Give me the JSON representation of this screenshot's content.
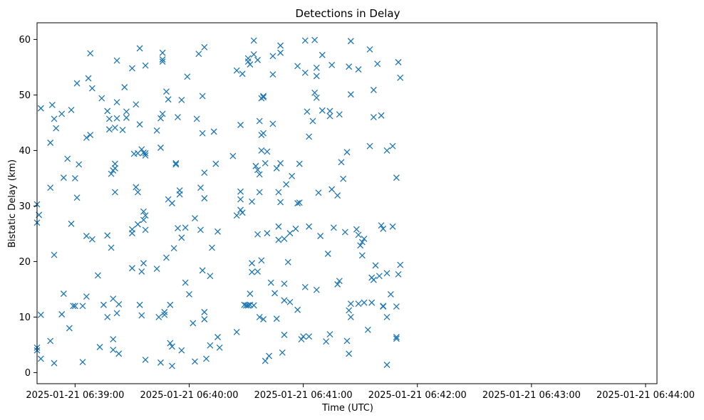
{
  "chart_data": {
    "type": "scatter",
    "title": "Detections in Delay",
    "xlabel": "Time (UTC)",
    "ylabel": "Bistatic Delay (km)",
    "x_tick_labels": [
      "2025-01-21 06:39:00",
      "2025-01-21 06:40:00",
      "2025-01-21 06:41:00",
      "2025-01-21 06:42:00",
      "2025-01-21 06:43:00",
      "2025-01-21 06:44:00"
    ],
    "x_ticks": [
      "06:39:00",
      "06:40:00",
      "06:41:00",
      "06:42:00",
      "06:43:00",
      "06:44:00"
    ],
    "xlim": [
      "06:38:40",
      "06:44:06"
    ],
    "y_ticks": [
      0,
      10,
      20,
      30,
      40,
      50,
      60
    ],
    "ylim": [
      -2,
      63
    ],
    "grid": false,
    "marker": "x",
    "color": "#1f77b4",
    "points": [
      [
        "06:38:40",
        27.0
      ],
      [
        "06:38:40",
        30.3
      ],
      [
        "06:38:41",
        28.4
      ],
      [
        "06:38:40",
        4.5
      ],
      [
        "06:38:40",
        4.0
      ],
      [
        "06:38:42",
        10.4
      ],
      [
        "06:38:42",
        2.5
      ],
      [
        "06:38:42",
        47.6
      ],
      [
        "06:38:47",
        41.4
      ],
      [
        "06:38:47",
        33.3
      ],
      [
        "06:38:47",
        5.7
      ],
      [
        "06:38:48",
        48.2
      ],
      [
        "06:38:49",
        45.7
      ],
      [
        "06:38:49",
        21.2
      ],
      [
        "06:38:49",
        1.7
      ],
      [
        "06:38:50",
        44.0
      ],
      [
        "06:38:53",
        46.6
      ],
      [
        "06:38:53",
        10.5
      ],
      [
        "06:38:54",
        14.2
      ],
      [
        "06:38:54",
        35.1
      ],
      [
        "06:38:56",
        38.5
      ],
      [
        "06:38:57",
        8.0
      ],
      [
        "06:38:58",
        26.8
      ],
      [
        "06:38:58",
        47.3
      ],
      [
        "06:38:59",
        12.0
      ],
      [
        "06:39:00",
        12.0
      ],
      [
        "06:39:00",
        35.0
      ],
      [
        "06:39:01",
        31.5
      ],
      [
        "06:39:01",
        52.1
      ],
      [
        "06:39:02",
        37.5
      ],
      [
        "06:39:04",
        1.9
      ],
      [
        "06:39:04",
        12.0
      ],
      [
        "06:39:06",
        24.6
      ],
      [
        "06:39:06",
        42.3
      ],
      [
        "06:39:06",
        13.7
      ],
      [
        "06:39:07",
        53.0
      ],
      [
        "06:39:08",
        42.8
      ],
      [
        "06:39:08",
        57.5
      ],
      [
        "06:39:09",
        24.0
      ],
      [
        "06:39:09",
        51.2
      ],
      [
        "06:39:12",
        17.5
      ],
      [
        "06:39:13",
        4.6
      ],
      [
        "06:39:14",
        49.4
      ],
      [
        "06:39:15",
        12.2
      ],
      [
        "06:39:17",
        10.0
      ],
      [
        "06:39:17",
        24.7
      ],
      [
        "06:39:17",
        47.1
      ],
      [
        "06:39:18",
        45.7
      ],
      [
        "06:39:18",
        43.8
      ],
      [
        "06:39:19",
        22.5
      ],
      [
        "06:39:19",
        35.8
      ],
      [
        "06:39:20",
        36.4
      ],
      [
        "06:39:20",
        4.1
      ],
      [
        "06:39:20",
        13.3
      ],
      [
        "06:39:20",
        6.0
      ],
      [
        "06:39:21",
        44.1
      ],
      [
        "06:39:21",
        32.5
      ],
      [
        "06:39:21",
        36.8
      ],
      [
        "06:39:21",
        37.6
      ],
      [
        "06:39:22",
        10.7
      ],
      [
        "06:39:22",
        48.7
      ],
      [
        "06:39:22",
        45.8
      ],
      [
        "06:39:22",
        56.2
      ],
      [
        "06:39:23",
        3.4
      ],
      [
        "06:39:23",
        12.3
      ],
      [
        "06:39:25",
        43.7
      ],
      [
        "06:39:26",
        51.4
      ],
      [
        "06:39:27",
        47.0
      ],
      [
        "06:39:27",
        45.9
      ],
      [
        "06:39:30",
        25.8
      ],
      [
        "06:39:30",
        25.1
      ],
      [
        "06:39:30",
        18.8
      ],
      [
        "06:39:30",
        54.8
      ],
      [
        "06:39:31",
        39.4
      ],
      [
        "06:39:32",
        48.3
      ],
      [
        "06:39:32",
        33.4
      ],
      [
        "06:39:33",
        32.5
      ],
      [
        "06:39:33",
        26.7
      ],
      [
        "06:39:33",
        39.5
      ],
      [
        "06:39:34",
        12.2
      ],
      [
        "06:39:34",
        58.4
      ],
      [
        "06:39:34",
        44.7
      ],
      [
        "06:39:35",
        40.2
      ],
      [
        "06:39:35",
        18.2
      ],
      [
        "06:39:35",
        10.3
      ],
      [
        "06:39:36",
        19.7
      ],
      [
        "06:39:36",
        27.5
      ],
      [
        "06:39:36",
        29.0
      ],
      [
        "06:39:36",
        39.6
      ],
      [
        "06:39:37",
        39.1
      ],
      [
        "06:39:37",
        28.3
      ],
      [
        "06:39:37",
        55.3
      ],
      [
        "06:39:37",
        2.3
      ],
      [
        "06:39:37",
        25.7
      ],
      [
        "06:39:37",
        39.5
      ],
      [
        "06:39:43",
        43.6
      ],
      [
        "06:39:43",
        18.7
      ],
      [
        "06:39:44",
        10.0
      ],
      [
        "06:39:45",
        45.8
      ],
      [
        "06:39:45",
        40.5
      ],
      [
        "06:39:45",
        1.8
      ],
      [
        "06:39:46",
        57.6
      ],
      [
        "06:39:46",
        56.0
      ],
      [
        "06:39:46",
        56.4
      ],
      [
        "06:39:46",
        46.6
      ],
      [
        "06:39:47",
        10.9
      ],
      [
        "06:39:47",
        10.4
      ],
      [
        "06:39:48",
        50.6
      ],
      [
        "06:39:48",
        20.7
      ],
      [
        "06:39:49",
        31.2
      ],
      [
        "06:39:49",
        49.2
      ],
      [
        "06:39:50",
        12.2
      ],
      [
        "06:39:50",
        5.3
      ],
      [
        "06:39:51",
        30.5
      ],
      [
        "06:39:51",
        4.7
      ],
      [
        "06:39:51",
        1.2
      ],
      [
        "06:39:52",
        22.4
      ],
      [
        "06:39:53",
        37.7
      ],
      [
        "06:39:53",
        37.5
      ],
      [
        "06:39:54",
        26.0
      ],
      [
        "06:39:54",
        46.0
      ],
      [
        "06:39:55",
        32.8
      ],
      [
        "06:39:55",
        32.1
      ],
      [
        "06:39:56",
        4.0
      ],
      [
        "06:39:56",
        49.1
      ],
      [
        "06:39:56",
        24.3
      ],
      [
        "06:39:58",
        26.1
      ],
      [
        "06:39:58",
        16.2
      ],
      [
        "06:39:59",
        53.3
      ],
      [
        "06:40:00",
        14.1
      ],
      [
        "06:40:02",
        8.9
      ],
      [
        "06:40:03",
        27.8
      ],
      [
        "06:40:03",
        2.0
      ],
      [
        "06:40:04",
        45.7
      ],
      [
        "06:40:05",
        57.4
      ],
      [
        "06:40:06",
        33.3
      ],
      [
        "06:40:06",
        25.7
      ],
      [
        "06:40:07",
        43.1
      ],
      [
        "06:40:07",
        18.4
      ],
      [
        "06:40:07",
        49.8
      ],
      [
        "06:40:08",
        58.6
      ],
      [
        "06:40:08",
        10.9
      ],
      [
        "06:40:08",
        9.6
      ],
      [
        "06:40:08",
        36.0
      ],
      [
        "06:40:08",
        31.4
      ],
      [
        "06:40:09",
        2.5
      ],
      [
        "06:40:11",
        17.4
      ],
      [
        "06:40:11",
        4.9
      ],
      [
        "06:40:12",
        22.5
      ],
      [
        "06:40:13",
        43.4
      ],
      [
        "06:40:14",
        37.6
      ],
      [
        "06:40:15",
        6.4
      ],
      [
        "06:40:15",
        25.4
      ],
      [
        "06:40:16",
        4.5
      ],
      [
        "06:40:23",
        39.0
      ],
      [
        "06:40:25",
        7.3
      ],
      [
        "06:40:25",
        28.3
      ],
      [
        "06:40:25",
        54.4
      ],
      [
        "06:40:27",
        32.6
      ],
      [
        "06:40:27",
        31.2
      ],
      [
        "06:40:27",
        44.6
      ],
      [
        "06:40:27",
        29.3
      ],
      [
        "06:40:28",
        53.8
      ],
      [
        "06:40:28",
        28.8
      ],
      [
        "06:40:29",
        12.2
      ],
      [
        "06:40:30",
        12.1
      ],
      [
        "06:40:31",
        12.1
      ],
      [
        "06:40:31",
        12.1
      ],
      [
        "06:40:31",
        56.0
      ],
      [
        "06:40:31",
        56.6
      ],
      [
        "06:40:32",
        55.5
      ],
      [
        "06:40:32",
        14.2
      ],
      [
        "06:40:32",
        12.2
      ],
      [
        "06:40:33",
        19.7
      ],
      [
        "06:40:33",
        30.8
      ],
      [
        "06:40:33",
        18.1
      ],
      [
        "06:40:34",
        12.1
      ],
      [
        "06:40:34",
        59.8
      ],
      [
        "06:40:34",
        57.3
      ],
      [
        "06:40:35",
        37.2
      ],
      [
        "06:40:36",
        18.2
      ],
      [
        "06:40:36",
        24.9
      ],
      [
        "06:40:36",
        36.5
      ],
      [
        "06:40:36",
        56.3
      ],
      [
        "06:40:37",
        35.7
      ],
      [
        "06:40:37",
        10.0
      ],
      [
        "06:40:37",
        45.3
      ],
      [
        "06:40:37",
        32.5
      ],
      [
        "06:40:38",
        42.8
      ],
      [
        "06:40:38",
        49.4
      ],
      [
        "06:40:38",
        40.0
      ],
      [
        "06:40:38",
        20.2
      ],
      [
        "06:40:39",
        43.1
      ],
      [
        "06:40:39",
        49.8
      ],
      [
        "06:40:39",
        49.6
      ],
      [
        "06:40:39",
        9.6
      ],
      [
        "06:40:40",
        37.7
      ],
      [
        "06:40:40",
        2.1
      ],
      [
        "06:40:41",
        25.1
      ],
      [
        "06:40:41",
        39.8
      ],
      [
        "06:40:42",
        3.0
      ],
      [
        "06:40:43",
        16.2
      ],
      [
        "06:40:44",
        57.0
      ],
      [
        "06:40:44",
        53.7
      ],
      [
        "06:40:44",
        44.8
      ],
      [
        "06:40:45",
        14.3
      ],
      [
        "06:40:46",
        9.7
      ],
      [
        "06:40:46",
        36.8
      ],
      [
        "06:40:47",
        32.5
      ],
      [
        "06:40:47",
        26.3
      ],
      [
        "06:40:47",
        23.9
      ],
      [
        "06:40:48",
        58.9
      ],
      [
        "06:40:48",
        37.7
      ],
      [
        "06:40:48",
        57.6
      ],
      [
        "06:40:48",
        30.7
      ],
      [
        "06:40:49",
        3.6
      ],
      [
        "06:40:50",
        24.1
      ],
      [
        "06:40:50",
        16.0
      ],
      [
        "06:40:50",
        6.8
      ],
      [
        "06:40:50",
        13.0
      ],
      [
        "06:40:51",
        33.9
      ],
      [
        "06:40:52",
        19.9
      ],
      [
        "06:40:53",
        12.7
      ],
      [
        "06:40:53",
        25.1
      ],
      [
        "06:40:54",
        35.4
      ],
      [
        "06:40:56",
        25.9
      ],
      [
        "06:40:57",
        11.3
      ],
      [
        "06:40:57",
        30.5
      ],
      [
        "06:40:57",
        55.2
      ],
      [
        "06:40:58",
        30.6
      ],
      [
        "06:40:58",
        37.6
      ],
      [
        "06:40:59",
        6.0
      ],
      [
        "06:41:00",
        6.5
      ],
      [
        "06:41:01",
        59.8
      ],
      [
        "06:41:01",
        54.0
      ],
      [
        "06:41:01",
        15.4
      ],
      [
        "06:41:02",
        47.0
      ],
      [
        "06:41:03",
        42.5
      ],
      [
        "06:41:03",
        26.3
      ],
      [
        "06:41:03",
        6.5
      ],
      [
        "06:41:05",
        45.3
      ],
      [
        "06:41:06",
        50.4
      ],
      [
        "06:41:06",
        59.9
      ],
      [
        "06:41:07",
        54.9
      ],
      [
        "06:41:07",
        53.4
      ],
      [
        "06:41:07",
        49.5
      ],
      [
        "06:41:07",
        14.9
      ],
      [
        "06:41:08",
        32.4
      ],
      [
        "06:41:09",
        24.6
      ],
      [
        "06:41:10",
        47.2
      ],
      [
        "06:41:10",
        57.2
      ],
      [
        "06:41:12",
        5.6
      ],
      [
        "06:41:13",
        21.4
      ],
      [
        "06:41:14",
        6.9
      ],
      [
        "06:41:14",
        47.1
      ],
      [
        "06:41:14",
        46.2
      ],
      [
        "06:41:15",
        33.0
      ],
      [
        "06:41:15",
        55.4
      ],
      [
        "06:41:16",
        26.1
      ],
      [
        "06:41:18",
        15.9
      ],
      [
        "06:41:18",
        31.9
      ],
      [
        "06:41:19",
        46.5
      ],
      [
        "06:41:19",
        16.5
      ],
      [
        "06:41:20",
        37.9
      ],
      [
        "06:41:21",
        34.9
      ],
      [
        "06:41:22",
        25.3
      ],
      [
        "06:41:23",
        39.7
      ],
      [
        "06:41:23",
        5.7
      ],
      [
        "06:41:24",
        55.1
      ],
      [
        "06:41:24",
        3.4
      ],
      [
        "06:41:24",
        11.2
      ],
      [
        "06:41:25",
        10.0
      ],
      [
        "06:41:25",
        12.4
      ],
      [
        "06:41:25",
        59.7
      ],
      [
        "06:41:25",
        50.1
      ],
      [
        "06:41:28",
        25.8
      ],
      [
        "06:41:29",
        24.8
      ],
      [
        "06:41:29",
        12.4
      ],
      [
        "06:41:29",
        54.6
      ],
      [
        "06:41:30",
        22.9
      ],
      [
        "06:41:31",
        23.5
      ],
      [
        "06:41:31",
        21.1
      ],
      [
        "06:41:32",
        12.6
      ],
      [
        "06:41:32",
        24.1
      ],
      [
        "06:41:34",
        7.7
      ],
      [
        "06:41:35",
        58.2
      ],
      [
        "06:41:35",
        40.8
      ],
      [
        "06:41:36",
        17.1
      ],
      [
        "06:41:36",
        12.6
      ],
      [
        "06:41:37",
        46.0
      ],
      [
        "06:41:37",
        16.7
      ],
      [
        "06:41:37",
        50.9
      ],
      [
        "06:41:38",
        19.3
      ],
      [
        "06:41:39",
        55.6
      ],
      [
        "06:41:40",
        17.4
      ],
      [
        "06:41:41",
        46.3
      ],
      [
        "06:41:41",
        26.5
      ],
      [
        "06:41:42",
        12.0
      ],
      [
        "06:41:42",
        11.9
      ],
      [
        "06:41:42",
        25.9
      ],
      [
        "06:41:44",
        10.0
      ],
      [
        "06:41:44",
        17.9
      ],
      [
        "06:41:44",
        1.4
      ],
      [
        "06:41:44",
        40.0
      ],
      [
        "06:41:46",
        14.1
      ],
      [
        "06:41:47",
        40.8
      ],
      [
        "06:41:47",
        26.3
      ],
      [
        "06:41:49",
        35.1
      ],
      [
        "06:41:49",
        6.4
      ],
      [
        "06:41:49",
        6.1
      ],
      [
        "06:41:49",
        11.9
      ],
      [
        "06:41:50",
        17.7
      ],
      [
        "06:41:50",
        55.9
      ],
      [
        "06:41:51",
        53.1
      ],
      [
        "06:41:51",
        19.4
      ]
    ]
  }
}
